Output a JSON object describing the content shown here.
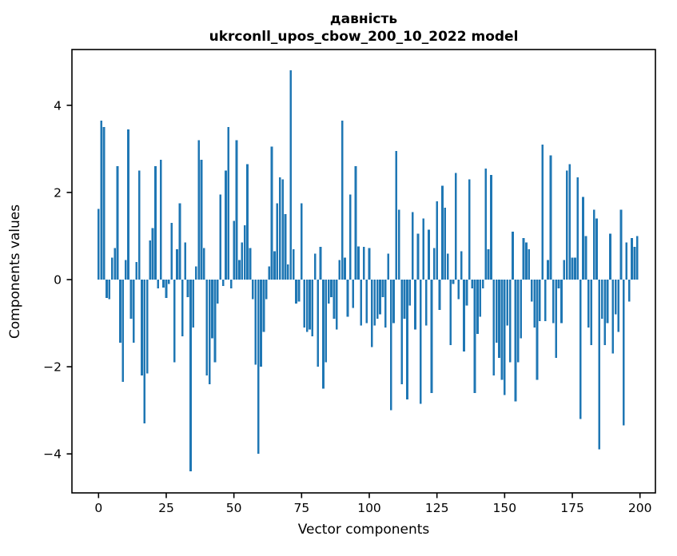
{
  "figure": {
    "title_line1": "давність",
    "title_line2": "ukrconll_upos_cbow_200_10_2022 model"
  },
  "chart_data": {
    "type": "bar",
    "title": "давність",
    "subtitle": "ukrconll_upos_cbow_200_10_2022 model",
    "xlabel": "Vector components",
    "ylabel": "Components values",
    "x_ticks": [
      0,
      25,
      50,
      75,
      100,
      125,
      150,
      175,
      200
    ],
    "y_ticks": [
      -4,
      -2,
      0,
      2,
      4
    ],
    "xlim": [
      -10,
      206
    ],
    "ylim": [
      -4.9,
      5.28
    ],
    "grid": false,
    "legend": "none",
    "bar_color": "#1f77b4",
    "n_components": 200,
    "values": [
      1.62,
      3.65,
      3.5,
      -0.42,
      -0.45,
      0.5,
      0.72,
      2.6,
      -1.45,
      -2.35,
      0.45,
      3.45,
      -0.9,
      -1.45,
      0.4,
      2.5,
      -2.2,
      -3.3,
      -2.15,
      0.9,
      1.18,
      2.6,
      -0.2,
      2.75,
      -0.18,
      -0.42,
      -0.1,
      1.3,
      -1.9,
      0.7,
      1.75,
      -1.3,
      0.85,
      -0.4,
      -4.4,
      -1.1,
      0.3,
      3.2,
      2.75,
      0.72,
      -2.2,
      -2.4,
      -1.35,
      -1.9,
      -0.55,
      1.95,
      -0.15,
      2.5,
      3.5,
      -0.2,
      1.35,
      3.2,
      0.45,
      0.85,
      1.25,
      2.65,
      0.72,
      -0.45,
      -1.95,
      -4.0,
      -2.0,
      -1.2,
      -0.45,
      0.3,
      3.05,
      0.65,
      1.75,
      2.35,
      2.3,
      1.5,
      0.35,
      4.8,
      0.7,
      -0.55,
      -0.5,
      1.75,
      -1.1,
      -1.2,
      -1.15,
      -1.3,
      0.6,
      -2.0,
      0.75,
      -2.5,
      -1.9,
      -0.55,
      -0.4,
      -0.9,
      -1.15,
      0.45,
      3.65,
      0.5,
      -0.85,
      1.95,
      -0.65,
      2.6,
      0.76,
      -1.05,
      0.75,
      -1.0,
      0.72,
      -1.55,
      -1.05,
      -0.9,
      -0.8,
      -0.4,
      -1.1,
      0.6,
      -3.0,
      -1.0,
      2.95,
      1.6,
      -2.4,
      -0.9,
      -2.75,
      -0.6,
      1.55,
      -1.15,
      1.05,
      -2.85,
      1.4,
      -1.05,
      1.15,
      -2.6,
      0.72,
      1.8,
      -0.7,
      2.15,
      1.65,
      0.6,
      -1.5,
      -0.1,
      2.45,
      -0.45,
      0.65,
      -1.65,
      -0.6,
      2.3,
      -0.2,
      -2.6,
      -1.25,
      -0.85,
      -0.2,
      2.55,
      0.7,
      2.4,
      -2.2,
      -1.45,
      -1.8,
      -2.3,
      -2.65,
      -1.05,
      -1.9,
      1.1,
      -2.8,
      -1.9,
      -1.35,
      0.95,
      0.85,
      0.7,
      -0.5,
      -1.1,
      -2.3,
      -0.95,
      3.1,
      -0.95,
      0.45,
      2.85,
      -1.0,
      -1.8,
      -0.2,
      -1.0,
      0.45,
      2.5,
      2.65,
      0.5,
      0.5,
      2.35,
      -3.2,
      1.9,
      1.0,
      -1.1,
      -1.5,
      1.6,
      1.4,
      -3.9,
      -0.9,
      -1.5,
      -1.0,
      1.05,
      -1.7,
      -0.8,
      -1.2,
      1.6,
      -3.35,
      0.85,
      -0.5,
      0.95,
      0.75,
      1.0
    ]
  }
}
